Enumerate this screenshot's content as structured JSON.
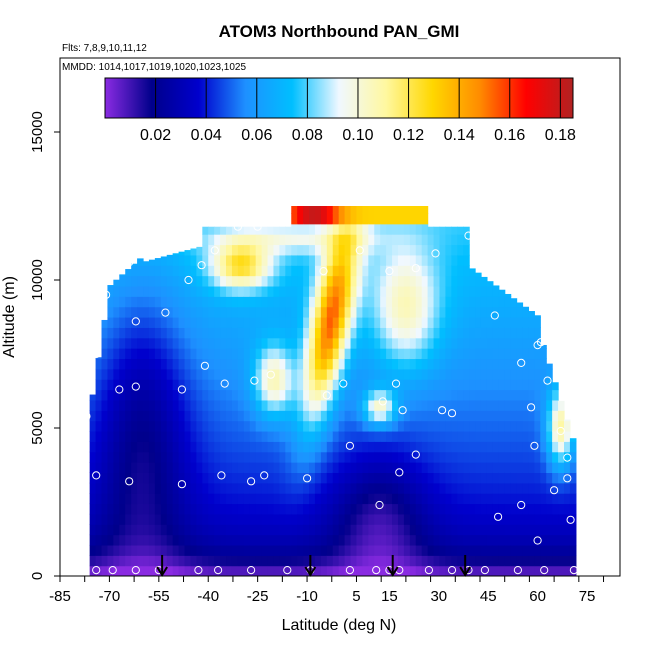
{
  "chart_data": {
    "type": "heatmap",
    "title": "ATOM3 Northbound PAN_GMI",
    "flights_label": "Flts: 7,8,9,10,11,12",
    "mmdd_label": "MMDD: 1014,1017,1019,1020,1023,1025",
    "xlabel": "Latitude (deg N)",
    "ylabel": "Altitude (m)",
    "xlim": [
      -85,
      85
    ],
    "ylim": [
      0,
      17500
    ],
    "x_ticks": [
      -85,
      -70,
      -55,
      -40,
      -25,
      -10,
      5,
      15,
      30,
      45,
      60,
      75
    ],
    "x_tick_labels": [
      "-85",
      "-70",
      "-55",
      "-40",
      "-25",
      "-10",
      "5",
      "15",
      "30",
      "45",
      "60",
      "75"
    ],
    "y_ticks": [
      0,
      5000,
      10000,
      15000
    ],
    "y_tick_labels": [
      "0",
      "5000",
      "10000",
      "15000"
    ],
    "colorbar": {
      "range": [
        0.0,
        0.185
      ],
      "ticks": [
        0.02,
        0.04,
        0.06,
        0.08,
        0.1,
        0.12,
        0.14,
        0.16,
        0.18
      ],
      "tick_labels": [
        "0.02",
        "0.04",
        "0.06",
        "0.08",
        "0.10",
        "0.12",
        "0.14",
        "0.16",
        "0.18"
      ],
      "colors": [
        "#8a2be2",
        "#00008b",
        "#0000cd",
        "#1e90ff",
        "#00bfff",
        "#f0f8ff",
        "#fff8a0",
        "#ffd700",
        "#ff8c00",
        "#ff0000",
        "#b22222"
      ]
    },
    "grid": false,
    "arrows_lat": [
      -54,
      -9,
      16,
      38
    ],
    "sample_points": [
      [
        -74,
        200
      ],
      [
        -69,
        200
      ],
      [
        -62,
        200
      ],
      [
        -55,
        200
      ],
      [
        -43,
        200
      ],
      [
        -37,
        200
      ],
      [
        -27,
        200
      ],
      [
        -16,
        200
      ],
      [
        -9,
        200
      ],
      [
        3,
        200
      ],
      [
        11,
        200
      ],
      [
        15,
        200
      ],
      [
        18,
        200
      ],
      [
        27,
        200
      ],
      [
        34,
        200
      ],
      [
        39,
        200
      ],
      [
        44,
        200
      ],
      [
        54,
        200
      ],
      [
        62,
        200
      ],
      [
        71,
        200
      ],
      [
        -74,
        3400
      ],
      [
        -64,
        3200
      ],
      [
        -48,
        3100
      ],
      [
        -36,
        3400
      ],
      [
        -27,
        3200
      ],
      [
        -23,
        3400
      ],
      [
        -10,
        3300
      ],
      [
        12,
        2400
      ],
      [
        18,
        3500
      ],
      [
        23,
        4100
      ],
      [
        31,
        5600
      ],
      [
        48,
        2000
      ],
      [
        55,
        2400
      ],
      [
        60,
        1200
      ],
      [
        65,
        2900
      ],
      [
        70,
        1900
      ],
      [
        -77,
        5400
      ],
      [
        -67,
        6300
      ],
      [
        -62,
        6400
      ],
      [
        -48,
        6300
      ],
      [
        -41,
        7100
      ],
      [
        -35,
        6500
      ],
      [
        -26,
        6600
      ],
      [
        -21,
        6800
      ],
      [
        -4,
        6100
      ],
      [
        1,
        6500
      ],
      [
        3,
        4400
      ],
      [
        13,
        5900
      ],
      [
        17,
        6500
      ],
      [
        19,
        5600
      ],
      [
        34,
        5500
      ],
      [
        55,
        7200
      ],
      [
        58,
        5700
      ],
      [
        59,
        4400
      ],
      [
        60,
        7800
      ],
      [
        63,
        6600
      ],
      [
        67,
        4900
      ],
      [
        69,
        4000
      ],
      [
        69,
        3300
      ],
      [
        -74,
        7500
      ],
      [
        -71,
        9500
      ],
      [
        -62,
        8600
      ],
      [
        -53,
        8900
      ],
      [
        -46,
        10000
      ],
      [
        -42,
        10500
      ],
      [
        -38,
        11000
      ],
      [
        -31,
        11800
      ],
      [
        -25,
        11800
      ],
      [
        -5,
        10300
      ],
      [
        6,
        11000
      ],
      [
        15,
        10300
      ],
      [
        23,
        10400
      ],
      [
        29,
        10900
      ],
      [
        39,
        11500
      ],
      [
        47,
        8800
      ],
      [
        61,
        7900
      ],
      [
        -64,
        10600
      ]
    ]
  }
}
